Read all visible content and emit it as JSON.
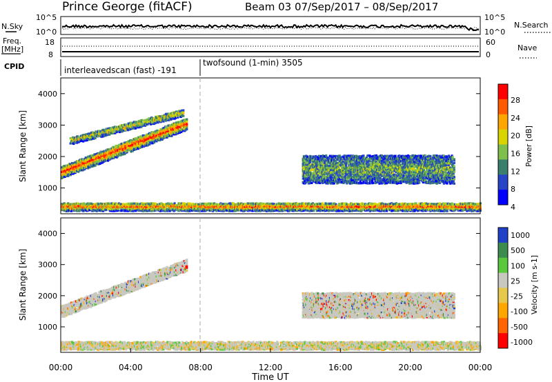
{
  "header": {
    "station": "Prince George (fitACF)",
    "beam_info": "Beam 03  07/Sep/2017 – 08/Sep/2017"
  },
  "top_strip": {
    "nsky_label": "N.Sky",
    "nsky_ticks": [
      "10^5",
      "10^0"
    ],
    "nsearch_label": "N.Search",
    "nsearch_ticks": [
      "10^5",
      "10^0"
    ],
    "freq_label": "Freq.",
    "freq_unit": "[MHz]",
    "freq_ticks": [
      "18",
      "8"
    ],
    "nave_label": "Nave",
    "nave_ticks": [
      "60",
      "0"
    ],
    "cpid_label": "CPID",
    "cpid_segments": [
      {
        "name": "interleavedscan (fast) -191",
        "start_hour": 0,
        "end_hour": 8
      },
      {
        "name": "twofsound (1-min) 3505",
        "start_hour": 8,
        "end_hour": 24
      }
    ]
  },
  "chart_data": [
    {
      "type": "heatmap",
      "id": "power",
      "xlabel": "",
      "ylabel": "Slant Range [km]",
      "xlim": [
        0,
        24
      ],
      "ylim": [
        180,
        4500
      ],
      "yticks": [
        1000,
        2000,
        3000,
        4000
      ],
      "colorbar_label": "Power [dB]",
      "colorbar_ticks": [
        "28",
        "24",
        "20",
        "16",
        "12",
        "8",
        "4"
      ],
      "colorscale": [
        "#0000ff",
        "#2845c8",
        "#3a7f6e",
        "#7fbf4b",
        "#d7d400",
        "#ffa500",
        "#ff5a00",
        "#ff0000"
      ],
      "regions": [
        {
          "desc": "main band",
          "start": 0.0,
          "end": 7.2,
          "range_start": 1500,
          "range_end": 3050,
          "thickness": 380,
          "level": 0.65
        },
        {
          "desc": "upper band",
          "start": 0.5,
          "end": 7.0,
          "range_start": 2500,
          "range_end": 3400,
          "thickness": 220,
          "level": 0.35
        },
        {
          "desc": "near range echoes",
          "start": 0.0,
          "end": 24.0,
          "range_start": 400,
          "range_end": 400,
          "thickness": 250,
          "level": 0.55
        },
        {
          "desc": "afternoon scatter",
          "start": 13.8,
          "end": 22.5,
          "range_start": 1600,
          "range_end": 1600,
          "thickness": 900,
          "level": 0.2
        }
      ]
    },
    {
      "type": "heatmap",
      "id": "velocity",
      "xlabel": "Time UT",
      "ylabel": "Slant Range [km]",
      "xlim": [
        0,
        24
      ],
      "ylim": [
        180,
        4500
      ],
      "xticks": [
        "00:00",
        "04:00",
        "08:00",
        "12:00",
        "16:00",
        "20:00",
        "00:00"
      ],
      "yticks": [
        1000,
        2000,
        3000,
        4000
      ],
      "colorbar_label": "Velocity [m s-1]",
      "colorbar_ticks": [
        "1000",
        "500",
        "100",
        "25",
        "-25",
        "-100",
        "-500",
        "-1000"
      ],
      "colorscale": [
        "#ff0000",
        "#ff6400",
        "#ffa500",
        "#e6c84a",
        "#c8c8c0",
        "#5ac83c",
        "#3c8c50",
        "#2040c8"
      ],
      "regions": [
        {
          "desc": "ground scatter band",
          "start": 0.0,
          "end": 7.2,
          "range_start": 1500,
          "range_end": 3000,
          "thickness": 380,
          "level": 0.5
        },
        {
          "desc": "near range",
          "start": 0.0,
          "end": 24.0,
          "range_start": 400,
          "range_end": 400,
          "thickness": 260,
          "level": 0.4
        },
        {
          "desc": "afternoon scatter",
          "start": 13.8,
          "end": 22.5,
          "range_start": 1700,
          "range_end": 1700,
          "thickness": 800,
          "level": 0.5
        }
      ]
    }
  ]
}
